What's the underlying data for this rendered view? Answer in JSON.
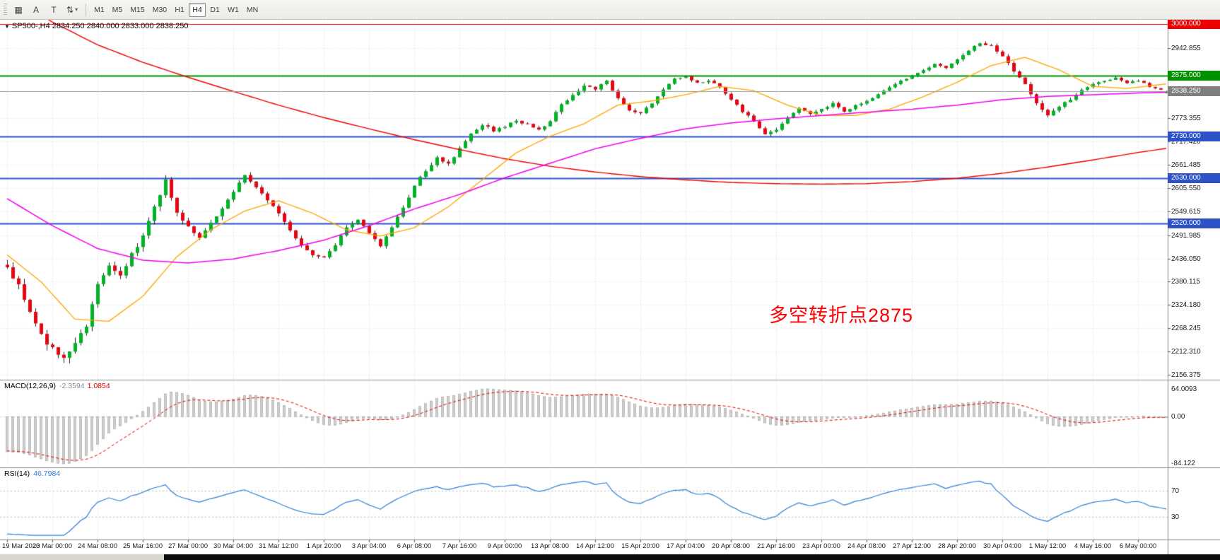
{
  "toolbar": {
    "left_buttons": [
      {
        "name": "layout-grid-button",
        "glyph": "▦"
      },
      {
        "name": "cursor-tool-button",
        "glyph": "A"
      },
      {
        "name": "text-tool-button",
        "glyph": "T"
      },
      {
        "name": "symbol-switch-button",
        "glyph": "⇅"
      },
      {
        "name": "dropdown-caret",
        "glyph": "▾"
      }
    ],
    "timeframes": [
      {
        "label": "M1",
        "active": false
      },
      {
        "label": "M5",
        "active": false
      },
      {
        "label": "M15",
        "active": false
      },
      {
        "label": "M30",
        "active": false
      },
      {
        "label": "H1",
        "active": false
      },
      {
        "label": "H4",
        "active": true
      },
      {
        "label": "D1",
        "active": false
      },
      {
        "label": "W1",
        "active": false
      },
      {
        "label": "MN",
        "active": false
      }
    ]
  },
  "chart": {
    "collapse_glyph": "▼",
    "header": "SP500-,H4  2834.250 2840.000 2833.000 2838.250",
    "annotation": {
      "text": "多空转折点2875",
      "color": "#ff0000"
    }
  },
  "chart_data": {
    "type": "candlestick",
    "symbol": "SP500-",
    "timeframe": "H4",
    "ohlc": {
      "open": 2834.25,
      "high": 2840.0,
      "low": 2833.0,
      "close": 2838.25
    },
    "bars": 206,
    "candle_colors": {
      "up": "#00b226",
      "down": "#e30613",
      "wick": "#222222"
    },
    "close_anchors": [
      [
        0,
        2410
      ],
      [
        2,
        2372
      ],
      [
        4,
        2305
      ],
      [
        6,
        2252
      ],
      [
        8,
        2218
      ],
      [
        10,
        2195
      ],
      [
        12,
        2232
      ],
      [
        14,
        2278
      ],
      [
        16,
        2372
      ],
      [
        18,
        2418
      ],
      [
        20,
        2398
      ],
      [
        22,
        2444
      ],
      [
        24,
        2492
      ],
      [
        26,
        2558
      ],
      [
        28,
        2628
      ],
      [
        30,
        2545
      ],
      [
        32,
        2512
      ],
      [
        34,
        2482
      ],
      [
        36,
        2520
      ],
      [
        38,
        2558
      ],
      [
        40,
        2598
      ],
      [
        42,
        2634
      ],
      [
        44,
        2608
      ],
      [
        46,
        2578
      ],
      [
        48,
        2545
      ],
      [
        50,
        2502
      ],
      [
        52,
        2466
      ],
      [
        54,
        2446
      ],
      [
        56,
        2436
      ],
      [
        58,
        2470
      ],
      [
        60,
        2508
      ],
      [
        62,
        2528
      ],
      [
        64,
        2496
      ],
      [
        66,
        2466
      ],
      [
        68,
        2510
      ],
      [
        70,
        2558
      ],
      [
        72,
        2612
      ],
      [
        74,
        2648
      ],
      [
        76,
        2678
      ],
      [
        78,
        2664
      ],
      [
        80,
        2700
      ],
      [
        82,
        2738
      ],
      [
        84,
        2758
      ],
      [
        86,
        2744
      ],
      [
        88,
        2754
      ],
      [
        90,
        2768
      ],
      [
        92,
        2758
      ],
      [
        94,
        2744
      ],
      [
        96,
        2768
      ],
      [
        98,
        2808
      ],
      [
        100,
        2828
      ],
      [
        102,
        2854
      ],
      [
        104,
        2844
      ],
      [
        106,
        2864
      ],
      [
        108,
        2820
      ],
      [
        110,
        2790
      ],
      [
        112,
        2784
      ],
      [
        114,
        2810
      ],
      [
        116,
        2844
      ],
      [
        118,
        2868
      ],
      [
        120,
        2874
      ],
      [
        122,
        2858
      ],
      [
        124,
        2864
      ],
      [
        126,
        2848
      ],
      [
        128,
        2818
      ],
      [
        130,
        2790
      ],
      [
        132,
        2768
      ],
      [
        134,
        2734
      ],
      [
        136,
        2744
      ],
      [
        138,
        2774
      ],
      [
        140,
        2798
      ],
      [
        142,
        2784
      ],
      [
        144,
        2794
      ],
      [
        146,
        2810
      ],
      [
        148,
        2790
      ],
      [
        150,
        2804
      ],
      [
        152,
        2814
      ],
      [
        154,
        2830
      ],
      [
        156,
        2848
      ],
      [
        158,
        2864
      ],
      [
        160,
        2874
      ],
      [
        162,
        2888
      ],
      [
        164,
        2904
      ],
      [
        166,
        2894
      ],
      [
        168,
        2914
      ],
      [
        170,
        2938
      ],
      [
        172,
        2954
      ],
      [
        174,
        2948
      ],
      [
        176,
        2920
      ],
      [
        178,
        2888
      ],
      [
        180,
        2854
      ],
      [
        182,
        2808
      ],
      [
        184,
        2778
      ],
      [
        186,
        2800
      ],
      [
        188,
        2820
      ],
      [
        190,
        2840
      ],
      [
        192,
        2854
      ],
      [
        194,
        2864
      ],
      [
        196,
        2870
      ],
      [
        198,
        2858
      ],
      [
        200,
        2864
      ],
      [
        202,
        2850
      ],
      [
        204,
        2842
      ],
      [
        205,
        2838.25
      ]
    ],
    "volatility_anchors": [
      [
        0,
        20
      ],
      [
        8,
        26
      ],
      [
        16,
        24
      ],
      [
        24,
        22
      ],
      [
        32,
        18
      ],
      [
        40,
        15
      ],
      [
        48,
        13
      ],
      [
        56,
        12
      ],
      [
        64,
        12
      ],
      [
        72,
        11
      ],
      [
        80,
        10
      ],
      [
        88,
        9
      ],
      [
        96,
        9
      ],
      [
        104,
        10
      ],
      [
        112,
        9
      ],
      [
        120,
        8
      ],
      [
        128,
        8
      ],
      [
        136,
        9
      ],
      [
        144,
        8
      ],
      [
        152,
        7
      ],
      [
        160,
        7
      ],
      [
        168,
        8
      ],
      [
        176,
        10
      ],
      [
        184,
        11
      ],
      [
        192,
        8
      ],
      [
        200,
        6
      ],
      [
        205,
        5
      ]
    ],
    "price_axis": {
      "top": 3000.0,
      "bottom": 2156.375,
      "ticks": [
        {
          "label": "2942.855",
          "value": 2942.855
        },
        {
          "label": "2773.355",
          "value": 2773.355
        },
        {
          "label": "2717.420",
          "value": 2717.42
        },
        {
          "label": "2661.485",
          "value": 2661.485
        },
        {
          "label": "2605.550",
          "value": 2605.55
        },
        {
          "label": "2549.615",
          "value": 2549.615
        },
        {
          "label": "2491.985",
          "value": 2491.985
        },
        {
          "label": "2436.050",
          "value": 2436.05
        },
        {
          "label": "2380.115",
          "value": 2380.115
        },
        {
          "label": "2324.180",
          "value": 2324.18
        },
        {
          "label": "2268.245",
          "value": 2268.245
        },
        {
          "label": "2212.310",
          "value": 2212.31
        },
        {
          "label": "2156.375",
          "value": 2156.375
        }
      ]
    },
    "hlines": [
      {
        "value": 3000.0,
        "label": "3000.000",
        "color": "#ee0000",
        "width": 1.2
      },
      {
        "value": 2875.0,
        "label": "2875.000",
        "color": "#009100",
        "width": 2
      },
      {
        "value": 2730.0,
        "label": "2730.000",
        "color": "#2d52c8",
        "width": 2
      },
      {
        "value": 2630.0,
        "label": "2630.000",
        "color": "#2d52c8",
        "width": 2
      },
      {
        "value": 2520.0,
        "label": "2520.000",
        "color": "#2d52c8",
        "width": 2
      }
    ],
    "current_price": {
      "value": 2838.25,
      "label": "2838.250",
      "badge_color": "#7f7f7f",
      "line_color": "#9a9a9a"
    },
    "ma_lines": [
      {
        "name": "ma-long-red",
        "color": "#ee0000",
        "width": 1.4,
        "anchors": [
          [
            0,
            3070
          ],
          [
            8,
            3005
          ],
          [
            16,
            2950
          ],
          [
            24,
            2908
          ],
          [
            32,
            2872
          ],
          [
            40,
            2838
          ],
          [
            48,
            2805
          ],
          [
            56,
            2775
          ],
          [
            64,
            2748
          ],
          [
            72,
            2722
          ],
          [
            80,
            2698
          ],
          [
            88,
            2676
          ],
          [
            96,
            2658
          ],
          [
            104,
            2644
          ],
          [
            112,
            2633
          ],
          [
            120,
            2625
          ],
          [
            128,
            2619
          ],
          [
            136,
            2616
          ],
          [
            144,
            2615
          ],
          [
            152,
            2616
          ],
          [
            160,
            2621
          ],
          [
            168,
            2629
          ],
          [
            176,
            2641
          ],
          [
            184,
            2656
          ],
          [
            192,
            2673
          ],
          [
            200,
            2691
          ],
          [
            205,
            2701
          ]
        ]
      },
      {
        "name": "ma-medium-orange",
        "color": "#ffa500",
        "width": 1.3,
        "anchors": [
          [
            0,
            2445
          ],
          [
            6,
            2380
          ],
          [
            12,
            2290
          ],
          [
            18,
            2285
          ],
          [
            24,
            2345
          ],
          [
            30,
            2440
          ],
          [
            36,
            2505
          ],
          [
            42,
            2550
          ],
          [
            48,
            2575
          ],
          [
            54,
            2545
          ],
          [
            60,
            2505
          ],
          [
            66,
            2490
          ],
          [
            72,
            2510
          ],
          [
            78,
            2560
          ],
          [
            84,
            2625
          ],
          [
            90,
            2690
          ],
          [
            96,
            2730
          ],
          [
            102,
            2760
          ],
          [
            108,
            2805
          ],
          [
            114,
            2815
          ],
          [
            120,
            2830
          ],
          [
            126,
            2850
          ],
          [
            132,
            2840
          ],
          [
            138,
            2805
          ],
          [
            144,
            2780
          ],
          [
            150,
            2780
          ],
          [
            156,
            2795
          ],
          [
            162,
            2825
          ],
          [
            168,
            2860
          ],
          [
            174,
            2900
          ],
          [
            180,
            2920
          ],
          [
            186,
            2890
          ],
          [
            192,
            2850
          ],
          [
            198,
            2845
          ],
          [
            205,
            2856
          ]
        ]
      },
      {
        "name": "ma-slow-magenta",
        "color": "#ee00ee",
        "width": 1.5,
        "anchors": [
          [
            0,
            2580
          ],
          [
            8,
            2515
          ],
          [
            16,
            2460
          ],
          [
            24,
            2432
          ],
          [
            32,
            2425
          ],
          [
            40,
            2435
          ],
          [
            48,
            2455
          ],
          [
            56,
            2480
          ],
          [
            64,
            2515
          ],
          [
            72,
            2555
          ],
          [
            80,
            2590
          ],
          [
            88,
            2630
          ],
          [
            96,
            2665
          ],
          [
            104,
            2700
          ],
          [
            112,
            2725
          ],
          [
            120,
            2748
          ],
          [
            128,
            2762
          ],
          [
            136,
            2772
          ],
          [
            144,
            2780
          ],
          [
            152,
            2788
          ],
          [
            160,
            2795
          ],
          [
            168,
            2805
          ],
          [
            176,
            2818
          ],
          [
            184,
            2826
          ],
          [
            192,
            2830
          ],
          [
            200,
            2834
          ],
          [
            205,
            2836
          ]
        ]
      }
    ],
    "time_labels": [
      "19 Mar 2020",
      "23 Mar 00:00",
      "24 Mar 08:00",
      "25 Mar 16:00",
      "27 Mar 00:00",
      "30 Mar 04:00",
      "31 Mar 12:00",
      "1 Apr 20:00",
      "3 Apr 04:00",
      "6 Apr 08:00",
      "7 Apr 16:00",
      "9 Apr 00:00",
      "13 Apr 08:00",
      "14 Apr 12:00",
      "15 Apr 20:00",
      "17 Apr 04:00",
      "20 Apr 08:00",
      "21 Apr 16:00",
      "23 Apr 00:00",
      "24 Apr 08:00",
      "27 Apr 12:00",
      "28 Apr 20:00",
      "30 Apr 04:00",
      "1 May 12:00",
      "4 May 16:00",
      "6 May 00:00"
    ],
    "indicators": {
      "macd": {
        "title": "MACD(12,26,9)",
        "main_value": "-2.3594",
        "signal_value": "1.0854",
        "axis_labels": [
          "64.0093",
          "0.00",
          "-84.122"
        ],
        "histogram_color": "#cfcfcf",
        "signal_color": "#e00000"
      },
      "rsi": {
        "title": "RSI(14)",
        "value": "46.7984",
        "levels": [
          70,
          30
        ],
        "axis_labels": [
          "70",
          "30"
        ],
        "line_color": "#2f7ed8"
      }
    }
  }
}
